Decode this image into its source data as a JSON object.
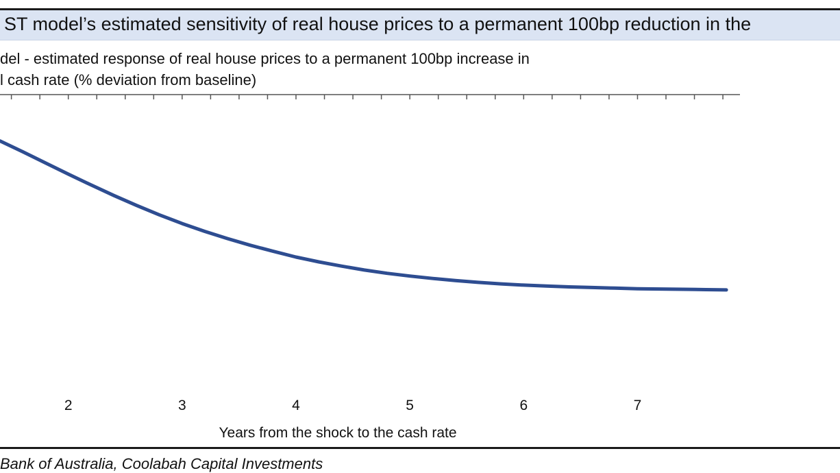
{
  "title": "ST model’s estimated sensitivity of real house prices to a permanent 100bp reduction in the",
  "subtitle": "del - estimated response of real house prices to a permanent 100bp increase in\nl cash rate (% deviation from baseline)",
  "source": "Bank of Australia, Coolabah Capital Investments",
  "colors": {
    "line": "#2e4d91",
    "title_band": "#dbe4f3",
    "axis": "#555555"
  },
  "chart_data": {
    "type": "line",
    "title": "ST model’s estimated sensitivity of real house prices to a permanent 100bp reduction in the",
    "xlabel": "Years from the shock to the cash rate",
    "ylabel": "",
    "categories": [
      "2",
      "3",
      "4",
      "5",
      "6",
      "7"
    ],
    "xlim": [
      1.4,
      7.9
    ],
    "ylim": [
      0,
      1
    ],
    "grid": false,
    "minor_ticks_per_year": 4,
    "series": [
      {
        "name": "",
        "x": [
          1.4,
          1.6,
          1.8,
          2.0,
          2.2,
          2.4,
          2.6,
          2.8,
          3.0,
          3.2,
          3.4,
          3.6,
          3.8,
          4.0,
          4.2,
          4.4,
          4.6,
          4.8,
          5.0,
          5.2,
          5.4,
          5.6,
          5.8,
          6.0,
          6.2,
          6.4,
          6.6,
          6.8,
          7.0,
          7.2,
          7.4,
          7.6,
          7.78
        ],
        "values": [
          0.851,
          0.815,
          0.778,
          0.741,
          0.705,
          0.67,
          0.637,
          0.606,
          0.577,
          0.551,
          0.527,
          0.505,
          0.485,
          0.466,
          0.45,
          0.436,
          0.423,
          0.412,
          0.403,
          0.395,
          0.388,
          0.382,
          0.377,
          0.373,
          0.37,
          0.367,
          0.365,
          0.363,
          0.361,
          0.36,
          0.359,
          0.358,
          0.357
        ]
      }
    ]
  }
}
